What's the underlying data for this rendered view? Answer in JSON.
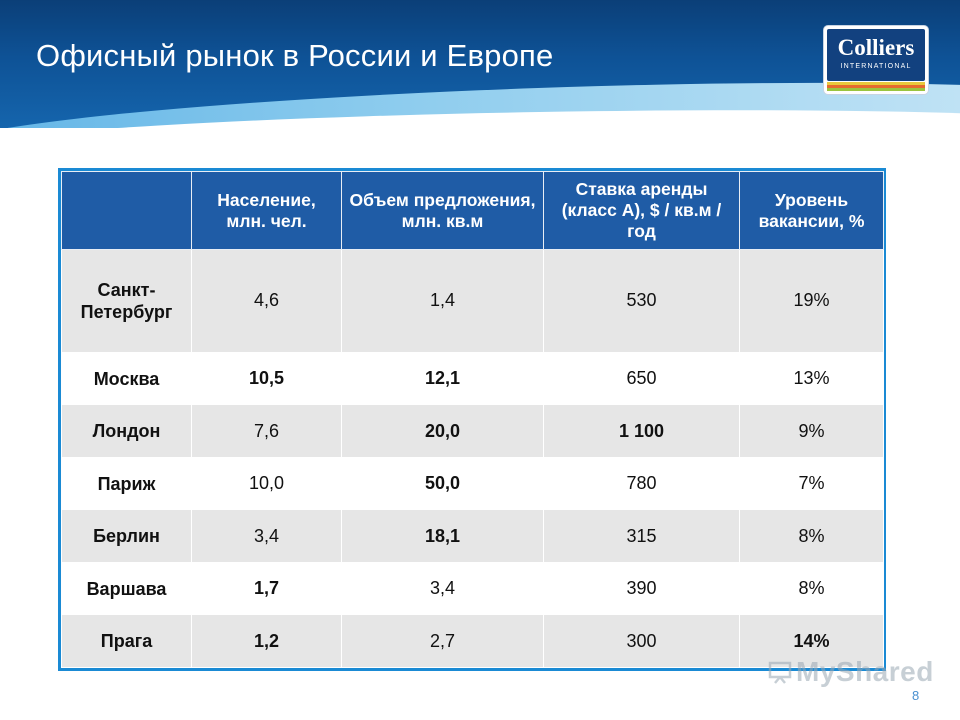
{
  "slide": {
    "title": "Офисный рынок в России и Европе",
    "page_number": "8"
  },
  "logo": {
    "name": "Colliers",
    "subtitle": "INTERNATIONAL",
    "stripe_colors": [
      "#e8c93c",
      "#e56b2e",
      "#9bc43f"
    ]
  },
  "watermark": "MyShared",
  "colors": {
    "header_blue": "#0e5296",
    "table_header": "#1f5ca6",
    "table_border": "#1a8ad4",
    "row_shade": "#e6e6e6"
  },
  "table": {
    "headers": [
      "",
      "Население, млн. чел.",
      "Объем предложения, млн. кв.м",
      "Ставка аренды (класс А), $ / кв.м / год",
      "Уровень вакансии, %"
    ],
    "rows": [
      {
        "city": "Санкт-Петербург",
        "population": "4,6",
        "supply": "1,4",
        "rent": "530",
        "vacancy": "19%"
      },
      {
        "city": "Москва",
        "population": "10,5",
        "supply": "12,1",
        "rent": "650",
        "vacancy": "13%"
      },
      {
        "city": "Лондон",
        "population": "7,6",
        "supply": "20,0",
        "rent": "1 100",
        "vacancy": "9%"
      },
      {
        "city": "Париж",
        "population": "10,0",
        "supply": "50,0",
        "rent": "780",
        "vacancy": "7%"
      },
      {
        "city": "Берлин",
        "population": "3,4",
        "supply": "18,1",
        "rent": "315",
        "vacancy": "8%"
      },
      {
        "city": "Варшава",
        "population": "1,7",
        "supply": "3,4",
        "rent": "390",
        "vacancy": "8%"
      },
      {
        "city": "Прага",
        "population": "1,2",
        "supply": "2,7",
        "rent": "300",
        "vacancy": "14%"
      }
    ]
  }
}
